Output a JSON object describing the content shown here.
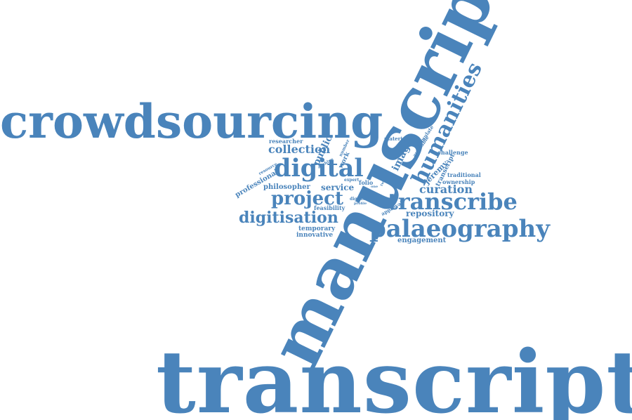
{
  "cloud": {
    "color": "#4a84bb",
    "words": {
      "transcription": "transcription",
      "manuscript": "manuscript",
      "crowdsourcing": "crowdsourcing",
      "palaeography": "palaeography",
      "transcribe": "transcribe",
      "digital": "digital",
      "humanities": "humanities",
      "project": "project",
      "digitisation": "digitisation",
      "curation": "curation",
      "collection": "collection",
      "public": "public",
      "repository": "repository",
      "service": "service",
      "image": "image",
      "jeremy": "jeremy",
      "philosopher": "philosopher",
      "professional": "professional",
      "engagement": "engagement",
      "temporary": "temporary",
      "innovative": "innovative",
      "feasibility": "feasibility",
      "researcher": "researcher",
      "challenge": "challenge",
      "traditional": "traditional",
      "ownership": "ownership",
      "transcript": "transcript",
      "material": "material",
      "stimulate": "stimulate",
      "available": "available",
      "work": "work",
      "number": "number",
      "archive": "archive",
      "resource": "resource",
      "folio": "folio",
      "expert": "expert",
      "approval": "approval",
      "digitise": "digitise",
      "profile": "profile",
      "one": "one",
      "two": "two"
    }
  }
}
